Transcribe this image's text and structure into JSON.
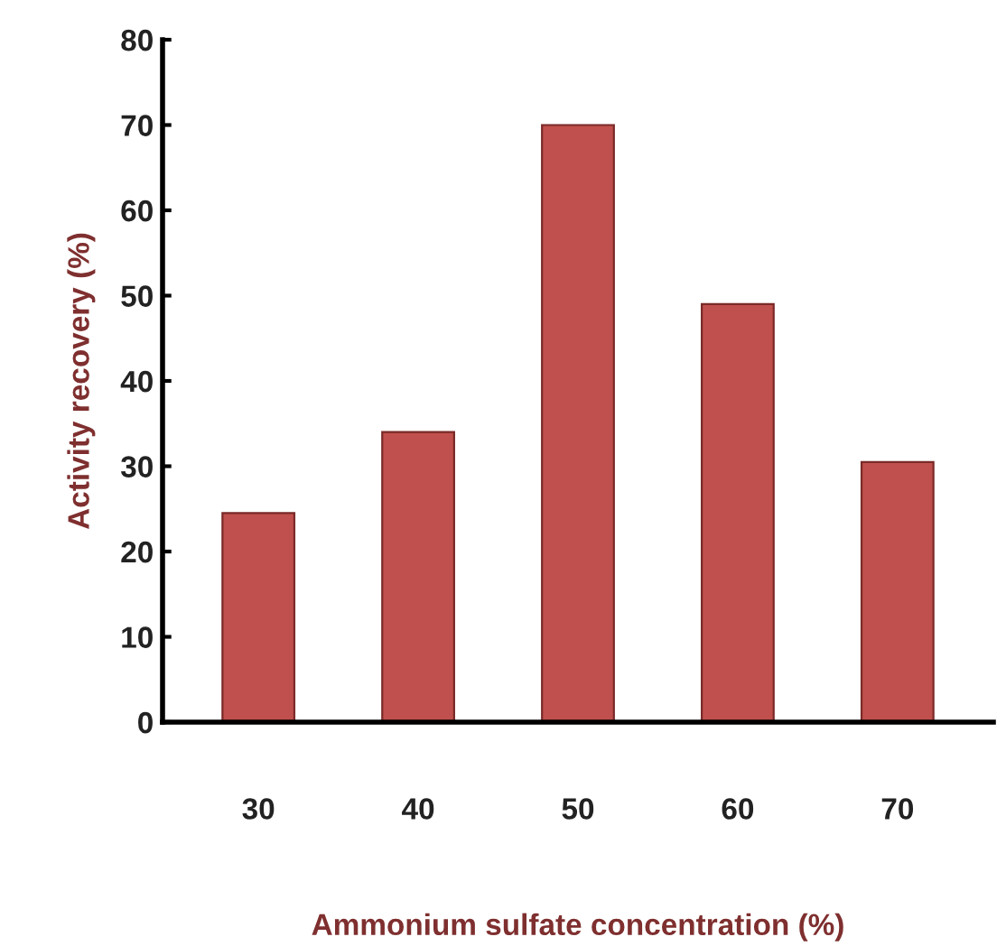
{
  "chart_data": {
    "type": "bar",
    "xlabel": "Ammonium sulfate concentration (%)",
    "ylabel": "Activity recovery (%)",
    "categories": [
      "30",
      "40",
      "50",
      "60",
      "70"
    ],
    "values": [
      24.5,
      34,
      70,
      49,
      30.5
    ],
    "color": "#c0504d",
    "ylim": [
      0,
      80
    ],
    "yticks": [
      0,
      10,
      20,
      30,
      40,
      50,
      60,
      70,
      80
    ],
    "grid": false
  }
}
